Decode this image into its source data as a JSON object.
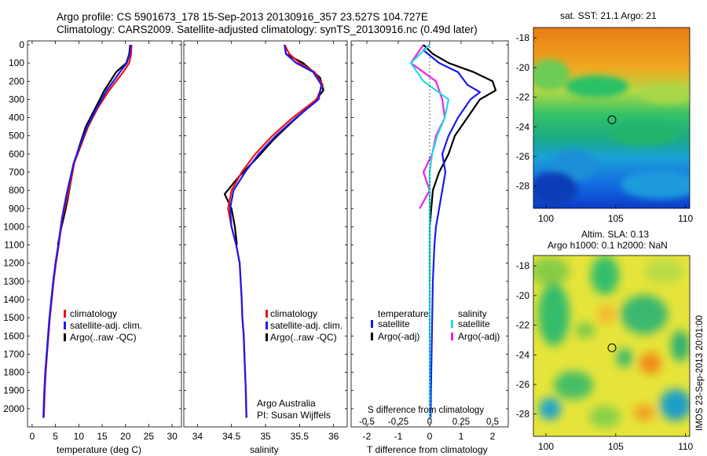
{
  "header": {
    "line1": "Argo profile: CS 5901673_178 15-Sep-2013 20130916_357 23.527S 104.727E",
    "line2": "Climatology: CARS2009. Satellite-adjusted climatology: synTS_20130916.nc (0.49d later)"
  },
  "watermark": "IMOS 23-Sep-2013 20:01:00",
  "map_sst": {
    "title": "sat. SST: 21.1  Argo: 21",
    "xticks": [
      "100",
      "105",
      "110"
    ],
    "yticks": [
      "-18",
      "-20",
      "-22",
      "-24",
      "-26",
      "-28"
    ],
    "marker": {
      "lon": 104.727,
      "lat": -23.527
    }
  },
  "map_sla": {
    "title1": "Altim. SLA: 0.13",
    "title2": "Argo h1000: 0.1 h2000: NaN",
    "xticks": [
      "100",
      "105",
      "110"
    ],
    "yticks": [
      "-18",
      "-20",
      "-22",
      "-24",
      "-26",
      "-28"
    ],
    "marker": {
      "lon": 104.727,
      "lat": -23.527
    }
  },
  "legend_temp": {
    "items": [
      "climatology",
      "satellite-adj. clim.",
      "Argo(..raw -QC)"
    ]
  },
  "legend_sal": {
    "items": [
      "climatology",
      "satellite-adj. clim.",
      "Argo(..raw -QC)"
    ]
  },
  "legend_diff": {
    "temperature": "temperature",
    "salinity": "salinity",
    "items": [
      "satellite",
      "Argo(-adj)",
      "satellite",
      "Argo(-adj)"
    ]
  },
  "notes": {
    "line1": "Argo Australia",
    "line2": "PI: Susan Wijffels"
  },
  "diff_labels": {
    "s_title": "S difference from climatology",
    "s_ticks": [
      "-0.5",
      "-0.25",
      "0",
      "0.25",
      "0.5"
    ]
  },
  "colors": {
    "climatology": "#ee1111",
    "satellite": "#1a1aee",
    "argo": "#000000",
    "sat_sal": "#22dddd",
    "argo_sal": "#ee22ee"
  },
  "chart_data": [
    {
      "type": "line",
      "xlabel": "temperature (deg C)",
      "xlim": [
        -1,
        32
      ],
      "ylim": [
        2100,
        0
      ],
      "xticks": [
        0,
        5,
        10,
        15,
        20,
        25,
        30
      ],
      "yticks": [
        0,
        100,
        200,
        300,
        400,
        500,
        600,
        700,
        800,
        900,
        1000,
        1100,
        1200,
        1300,
        1400,
        1500,
        1600,
        1700,
        1800,
        1900,
        2000
      ],
      "series": [
        {
          "name": "climatology",
          "x": [
            21.3,
            21.2,
            20.8,
            19.5,
            16.5,
            14.0,
            12.0,
            10.5,
            9.0,
            8.3,
            7.6,
            6.5,
            5.7,
            5.1,
            4.6,
            4.2,
            3.8,
            3.5,
            3.2,
            2.9,
            2.7,
            2.5
          ],
          "y": [
            0,
            50,
            100,
            150,
            250,
            350,
            450,
            550,
            650,
            750,
            830,
            950,
            1100,
            1200,
            1300,
            1400,
            1500,
            1600,
            1700,
            1800,
            1900,
            2050
          ]
        },
        {
          "name": "satellite-adj. clim.",
          "x": [
            21.1,
            20.9,
            20.3,
            18.8,
            16.0,
            13.8,
            11.8,
            10.3,
            8.9,
            8.0,
            7.3,
            6.4,
            5.6,
            5.0,
            4.5,
            4.1,
            3.7,
            3.4,
            3.1,
            2.8,
            2.6,
            2.4
          ],
          "y": [
            0,
            50,
            100,
            150,
            250,
            350,
            450,
            550,
            650,
            750,
            830,
            950,
            1100,
            1200,
            1300,
            1400,
            1500,
            1600,
            1700,
            1800,
            1900,
            2050
          ]
        },
        {
          "name": "Argo(..raw -QC)",
          "x": [
            21.0,
            20.8,
            20.2,
            18.0,
            15.5,
            13.5,
            11.5,
            10.2,
            9.0,
            7.6,
            7.2,
            6.3,
            5.5
          ],
          "y": [
            0,
            50,
            100,
            150,
            250,
            350,
            450,
            550,
            650,
            850,
            900,
            1000,
            1100
          ]
        }
      ]
    },
    {
      "type": "line",
      "xlabel": "salinity",
      "xlim": [
        33.8,
        36.2
      ],
      "ylim": [
        2100,
        0
      ],
      "xticks": [
        34,
        34.5,
        35,
        35.5,
        36
      ],
      "series": [
        {
          "name": "climatology",
          "x": [
            35.28,
            35.35,
            35.5,
            35.72,
            35.84,
            35.75,
            35.4,
            35.1,
            34.85,
            34.65,
            34.5,
            34.45,
            34.5,
            34.57,
            34.62,
            34.65,
            34.66,
            34.68,
            34.69,
            34.7,
            34.71,
            34.72
          ],
          "y": [
            0,
            50,
            100,
            150,
            220,
            300,
            400,
            500,
            600,
            700,
            800,
            900,
            1000,
            1100,
            1200,
            1400,
            1500,
            1600,
            1700,
            1800,
            1900,
            2050
          ]
        },
        {
          "name": "satellite-adj. clim.",
          "x": [
            35.28,
            35.3,
            35.45,
            35.7,
            35.82,
            35.78,
            35.45,
            35.15,
            34.9,
            34.7,
            34.53,
            34.48,
            34.5,
            34.57,
            34.62,
            34.65,
            34.66,
            34.68,
            34.69,
            34.7,
            34.71,
            34.72
          ],
          "y": [
            0,
            50,
            100,
            150,
            220,
            300,
            400,
            500,
            600,
            700,
            800,
            900,
            1000,
            1100,
            1200,
            1400,
            1500,
            1600,
            1700,
            1800,
            1900,
            2050
          ]
        },
        {
          "name": "Argo(..raw -QC)",
          "x": [
            35.28,
            35.3,
            35.55,
            35.8,
            35.85,
            35.7,
            35.4,
            35.12,
            34.88,
            34.62,
            34.4,
            34.5,
            34.55,
            34.58
          ],
          "y": [
            0,
            50,
            100,
            180,
            250,
            320,
            420,
            520,
            620,
            720,
            820,
            900,
            1000,
            1100
          ]
        }
      ]
    },
    {
      "type": "line",
      "xlabel": "T difference from climatology",
      "xlim": [
        -2.5,
        2.5
      ],
      "ylim": [
        2100,
        0
      ],
      "xticks": [
        -2,
        -1,
        0,
        1,
        2
      ],
      "series": [
        {
          "name": "temperature satellite",
          "x": [
            0,
            -0.2,
            0.3,
            0.9,
            1.2,
            1.6,
            1.3,
            0.9,
            0.6,
            0.4,
            0.5,
            0.4,
            0.3,
            0.2,
            0.15,
            0.1,
            0.08,
            0.06,
            0.05,
            0.04,
            0.03
          ],
          "y": [
            0,
            30,
            100,
            150,
            220,
            260,
            300,
            400,
            500,
            600,
            700,
            800,
            900,
            1000,
            1100,
            1300,
            1500,
            1700,
            1800,
            1900,
            2050
          ]
        },
        {
          "name": "temperature Argo(-adj)",
          "x": [
            -0.2,
            0.1,
            0.6,
            1.4,
            2.0,
            2.1,
            1.6,
            1.2,
            0.8,
            0.6,
            0.3,
            0.1,
            0.05,
            0,
            0,
            0
          ],
          "y": [
            0,
            50,
            100,
            150,
            200,
            250,
            300,
            400,
            500,
            600,
            700,
            800,
            900,
            1000,
            1100,
            1300
          ]
        }
      ]
    },
    {
      "type": "line",
      "xlabel": "S difference from climatology",
      "xlim": [
        -0.625,
        0.625
      ],
      "ylim": [
        2100,
        0
      ],
      "series": [
        {
          "name": "salinity satellite",
          "x": [
            0,
            -0.15,
            -0.05,
            0.15,
            0.12,
            0.06,
            0.02,
            0,
            0,
            0,
            0,
            0
          ],
          "y": [
            0,
            100,
            200,
            300,
            400,
            500,
            600,
            700,
            800,
            900,
            1000,
            2050
          ]
        },
        {
          "name": "salinity Argo(-adj)",
          "x": [
            -0.05,
            -0.15,
            0.05,
            0.1,
            0.12,
            0.05,
            0.02,
            -0.05,
            0,
            -0.08
          ],
          "y": [
            0,
            100,
            200,
            300,
            400,
            500,
            600,
            700,
            800,
            900
          ]
        }
      ]
    }
  ]
}
